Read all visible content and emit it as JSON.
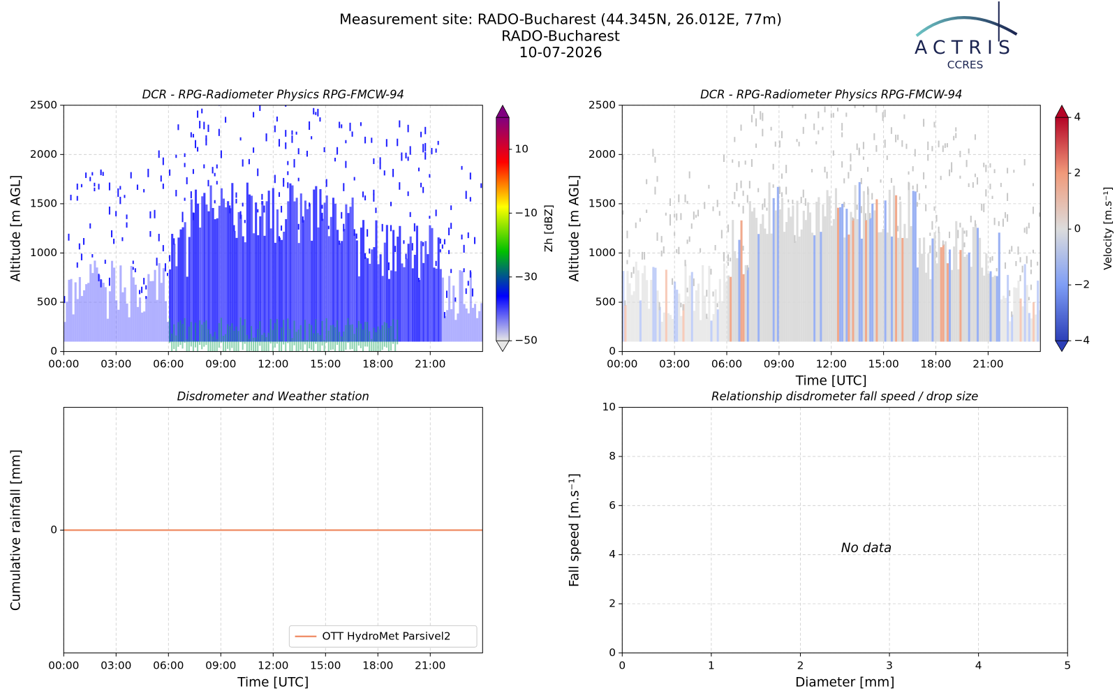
{
  "suptitle": [
    "Measurement site: RADO-Bucharest (44.345N, 26.012E, 77m)",
    "RADO-Bucharest",
    "10-07-2026"
  ],
  "logo": {
    "name": "ACTRIS",
    "sub": "CCRES"
  },
  "chart_data": [
    {
      "type": "heatmap",
      "title": "DCR - RPG-Radiometer Physics RPG-FMCW-94",
      "ylabel": "Altitude [m AGL]",
      "xlim": [
        0,
        24
      ],
      "xticks": [
        {
          "value": 0,
          "label": "00:00"
        },
        {
          "value": 3,
          "label": "03:00"
        },
        {
          "value": 6,
          "label": "06:00"
        },
        {
          "value": 9,
          "label": "09:00"
        },
        {
          "value": 12,
          "label": "12:00"
        },
        {
          "value": 15,
          "label": "15:00"
        },
        {
          "value": 18,
          "label": "18:00"
        },
        {
          "value": 21,
          "label": "21:00"
        }
      ],
      "ylim": [
        0,
        2500
      ],
      "yticks": [
        0,
        500,
        1000,
        1500,
        2000,
        2500
      ],
      "grid": true,
      "colorbar": {
        "label": "Zh [dBZ]",
        "clim": [
          -50,
          20
        ],
        "ticks": [
          {
            "value": -50,
            "label": "−50"
          },
          {
            "value": -30,
            "label": "−30"
          },
          {
            "value": -10,
            "label": "−10"
          },
          10
        ],
        "colors": [
          "#e6e6e6",
          "#0000ff",
          "#00c000",
          "#ffff00",
          "#ff0000",
          "#800080"
        ]
      }
    },
    {
      "type": "heatmap",
      "title": "DCR - RPG-Radiometer Physics RPG-FMCW-94",
      "ylabel": "Altitude [m AGL]",
      "xlabel": "Time [UTC]",
      "xlim": [
        0,
        24
      ],
      "xticks": [
        {
          "value": 0,
          "label": "00:00"
        },
        {
          "value": 3,
          "label": "03:00"
        },
        {
          "value": 6,
          "label": "06:00"
        },
        {
          "value": 9,
          "label": "09:00"
        },
        {
          "value": 12,
          "label": "12:00"
        },
        {
          "value": 15,
          "label": "15:00"
        },
        {
          "value": 18,
          "label": "18:00"
        },
        {
          "value": 21,
          "label": "21:00"
        }
      ],
      "ylim": [
        0,
        2500
      ],
      "yticks": [
        0,
        500,
        1000,
        1500,
        2000,
        2500
      ],
      "grid": true,
      "colorbar": {
        "label": "Velocity [m.s⁻¹]",
        "clim": [
          -4,
          4
        ],
        "ticks": [
          {
            "value": -4,
            "label": "−4"
          },
          {
            "value": -2,
            "label": "−2"
          },
          0,
          2,
          4
        ],
        "colors": [
          "#2c3fb8",
          "#7f9ef5",
          "#dcdcdc",
          "#f19a7a",
          "#b40426"
        ]
      }
    },
    {
      "type": "line",
      "title": "Disdrometer and Weather station",
      "ylabel": "Cumulative rainfall [mm]",
      "xlabel": "Time [UTC]",
      "xlim": [
        0,
        24
      ],
      "xticks": [
        {
          "value": 0,
          "label": "00:00"
        },
        {
          "value": 3,
          "label": "03:00"
        },
        {
          "value": 6,
          "label": "06:00"
        },
        {
          "value": 9,
          "label": "09:00"
        },
        {
          "value": 12,
          "label": "12:00"
        },
        {
          "value": 15,
          "label": "15:00"
        },
        {
          "value": 18,
          "label": "18:00"
        },
        {
          "value": 21,
          "label": "21:00"
        }
      ],
      "ylim": [
        -0.055,
        0.055
      ],
      "yticks": [
        0
      ],
      "grid": true,
      "legend": "lower right",
      "x": [
        0,
        24
      ],
      "series": [
        {
          "name": "OTT HydroMet Parsivel2",
          "color": "#ef8a62",
          "values": [
            0,
            0
          ]
        }
      ]
    },
    {
      "type": "scatter",
      "title": "Relationship disdrometer fall speed / drop size",
      "ylabel": "Fall speed [m.s⁻¹]",
      "xlabel": "Diameter [mm]",
      "xlim": [
        0,
        5
      ],
      "xticks": [
        0,
        1,
        2,
        3,
        4,
        5
      ],
      "ylim": [
        0,
        10
      ],
      "yticks": [
        0,
        2,
        4,
        6,
        8,
        10
      ],
      "grid": true,
      "annotation": "No data"
    }
  ]
}
